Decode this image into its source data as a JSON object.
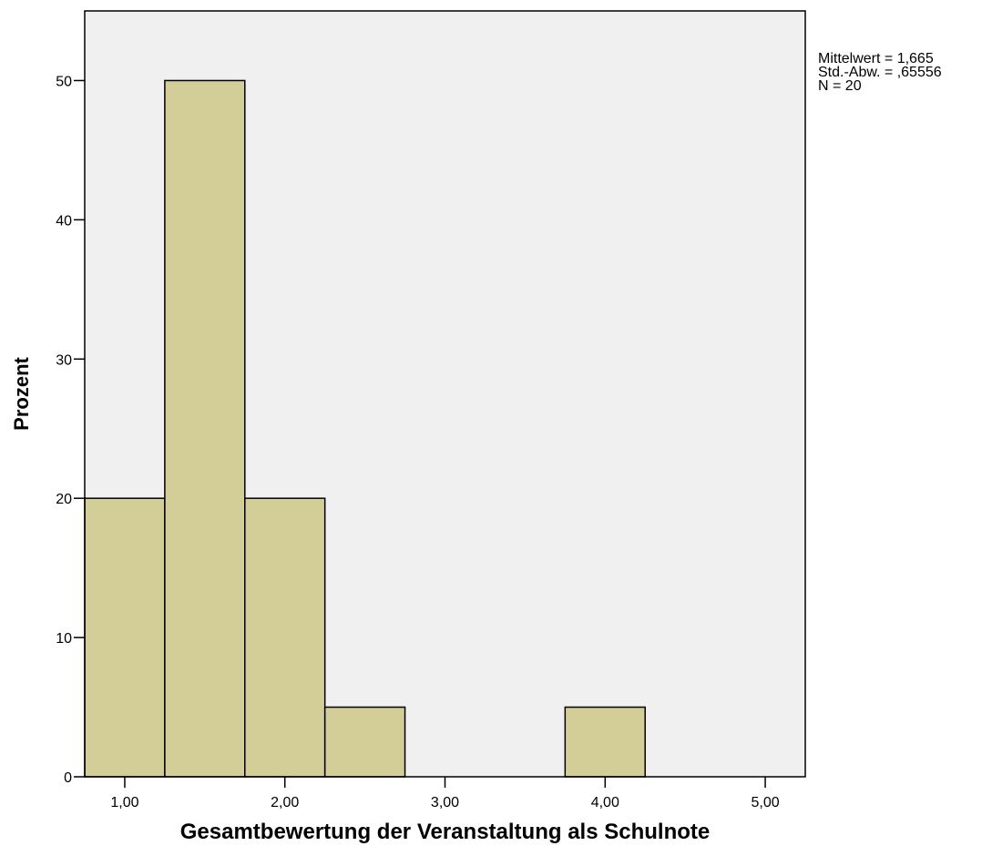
{
  "chart_data": {
    "type": "bar",
    "subtype": "histogram",
    "bins": [
      {
        "from": 0.75,
        "to": 1.25,
        "value": 20
      },
      {
        "from": 1.25,
        "to": 1.75,
        "value": 50
      },
      {
        "from": 1.75,
        "to": 2.25,
        "value": 20
      },
      {
        "from": 2.25,
        "to": 2.75,
        "value": 5
      },
      {
        "from": 3.75,
        "to": 4.25,
        "value": 5
      }
    ],
    "xlabel": "Gesamtbewertung der Veranstaltung als Schulnote",
    "ylabel": "Prozent",
    "xlim": [
      0.75,
      5.25
    ],
    "ylim": [
      0,
      55
    ],
    "xticks": [
      1,
      2,
      3,
      4,
      5
    ],
    "xtick_labels": [
      "1,00",
      "2,00",
      "3,00",
      "4,00",
      "5,00"
    ],
    "yticks": [
      0,
      10,
      20,
      30,
      40,
      50
    ],
    "ytick_labels": [
      "0",
      "10",
      "20",
      "30",
      "40",
      "50"
    ],
    "grid": false,
    "colors": {
      "bar": "#d3ce97",
      "plot_background": "#f0f0f0",
      "stroke": "#000000"
    }
  },
  "stats": {
    "mean": "Mittelwert = 1,665",
    "std": "Std.-Abw. = ,65556",
    "n": "N = 20"
  }
}
